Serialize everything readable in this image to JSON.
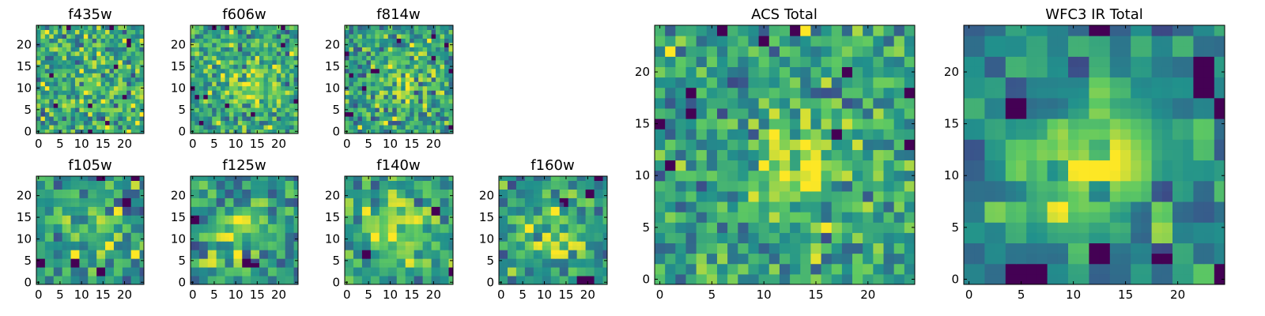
{
  "colormap": "viridis",
  "colors": {
    "viridis_stops": [
      "#440154",
      "#3b528b",
      "#21918c",
      "#5ec962",
      "#fde725"
    ],
    "frame": "#000000",
    "background": "#ffffff"
  },
  "chart_data": [
    {
      "id": "f435w",
      "type": "heatmap",
      "title": "f435w",
      "grid_size": 25,
      "xlim": [
        0,
        24
      ],
      "ylim": [
        0,
        24
      ],
      "xticks": [
        "0",
        "5",
        "10",
        "15",
        "20"
      ],
      "yticks": [
        "0",
        "5",
        "10",
        "15",
        "20"
      ],
      "seed": 435,
      "peak": [
        12,
        11
      ],
      "peak_strength": 0.12,
      "peak_width": 4,
      "noise": 1.0,
      "scale": 1
    },
    {
      "id": "f606w",
      "type": "heatmap",
      "title": "f606w",
      "grid_size": 25,
      "xlim": [
        0,
        24
      ],
      "ylim": [
        0,
        24
      ],
      "xticks": [
        "0",
        "5",
        "10",
        "15",
        "20"
      ],
      "yticks": [
        "0",
        "5",
        "10",
        "15",
        "20"
      ],
      "seed": 606,
      "peak": [
        13,
        11
      ],
      "peak_strength": 0.3,
      "peak_width": 3.5,
      "noise": 1.0,
      "scale": 1
    },
    {
      "id": "f814w",
      "type": "heatmap",
      "title": "f814w",
      "grid_size": 25,
      "xlim": [
        0,
        24
      ],
      "ylim": [
        0,
        24
      ],
      "xticks": [
        "0",
        "5",
        "10",
        "15",
        "20"
      ],
      "yticks": [
        "0",
        "5",
        "10",
        "15",
        "20"
      ],
      "seed": 814,
      "peak": [
        13,
        11
      ],
      "peak_strength": 0.35,
      "peak_width": 3.5,
      "noise": 1.0,
      "scale": 1
    },
    {
      "id": "f105w",
      "type": "heatmap",
      "title": "f105w",
      "grid_size": 25,
      "xlim": [
        0,
        24
      ],
      "ylim": [
        0,
        24
      ],
      "xticks": [
        "0",
        "5",
        "10",
        "15",
        "20"
      ],
      "yticks": [
        "0",
        "5",
        "10",
        "15",
        "20"
      ],
      "seed": 105,
      "peak": [
        12,
        12
      ],
      "peak_strength": 0.3,
      "peak_width": 5,
      "noise": 0.8,
      "scale": 2
    },
    {
      "id": "f125w",
      "type": "heatmap",
      "title": "f125w",
      "grid_size": 25,
      "xlim": [
        0,
        24
      ],
      "ylim": [
        0,
        24
      ],
      "xticks": [
        "0",
        "5",
        "10",
        "15",
        "20"
      ],
      "yticks": [
        "0",
        "5",
        "10",
        "15",
        "20"
      ],
      "seed": 125,
      "peak": [
        12,
        12
      ],
      "peak_strength": 0.3,
      "peak_width": 5,
      "noise": 0.8,
      "scale": 2
    },
    {
      "id": "f140w",
      "type": "heatmap",
      "title": "f140w",
      "grid_size": 25,
      "xlim": [
        0,
        24
      ],
      "ylim": [
        0,
        24
      ],
      "xticks": [
        "0",
        "5",
        "10",
        "15",
        "20"
      ],
      "yticks": [
        "0",
        "5",
        "10",
        "15",
        "20"
      ],
      "seed": 140,
      "peak": [
        12,
        13
      ],
      "peak_strength": 0.35,
      "peak_width": 5,
      "noise": 0.8,
      "scale": 2
    },
    {
      "id": "f160w",
      "type": "heatmap",
      "title": "f160w",
      "grid_size": 25,
      "xlim": [
        0,
        24
      ],
      "ylim": [
        0,
        24
      ],
      "xticks": [
        "0",
        "5",
        "10",
        "15",
        "20"
      ],
      "yticks": [
        "0",
        "5",
        "10",
        "15",
        "20"
      ],
      "seed": 160,
      "peak": [
        12,
        12
      ],
      "peak_strength": 0.3,
      "peak_width": 5,
      "noise": 0.8,
      "scale": 2
    },
    {
      "id": "acs-total",
      "type": "heatmap",
      "title": "ACS Total",
      "grid_size": 25,
      "xlim": [
        0,
        24
      ],
      "ylim": [
        0,
        24
      ],
      "xticks": [
        "0",
        "5",
        "10",
        "15",
        "20"
      ],
      "yticks": [
        "0",
        "5",
        "10",
        "15",
        "20"
      ],
      "seed": 999,
      "peak": [
        13,
        10
      ],
      "peak_strength": 0.45,
      "peak_width": 2.5,
      "noise": 0.7,
      "scale": 1
    },
    {
      "id": "wfc3-ir-total",
      "type": "heatmap",
      "title": "WFC3 IR Total",
      "grid_size": 25,
      "xlim": [
        0,
        24
      ],
      "ylim": [
        0,
        24
      ],
      "xticks": [
        "0",
        "5",
        "10",
        "15",
        "20"
      ],
      "yticks": [
        "0",
        "5",
        "10",
        "15",
        "20"
      ],
      "seed": 777,
      "peak": [
        12,
        11
      ],
      "peak_strength": 0.45,
      "peak_width": 4,
      "noise": 0.6,
      "scale": 2
    }
  ]
}
